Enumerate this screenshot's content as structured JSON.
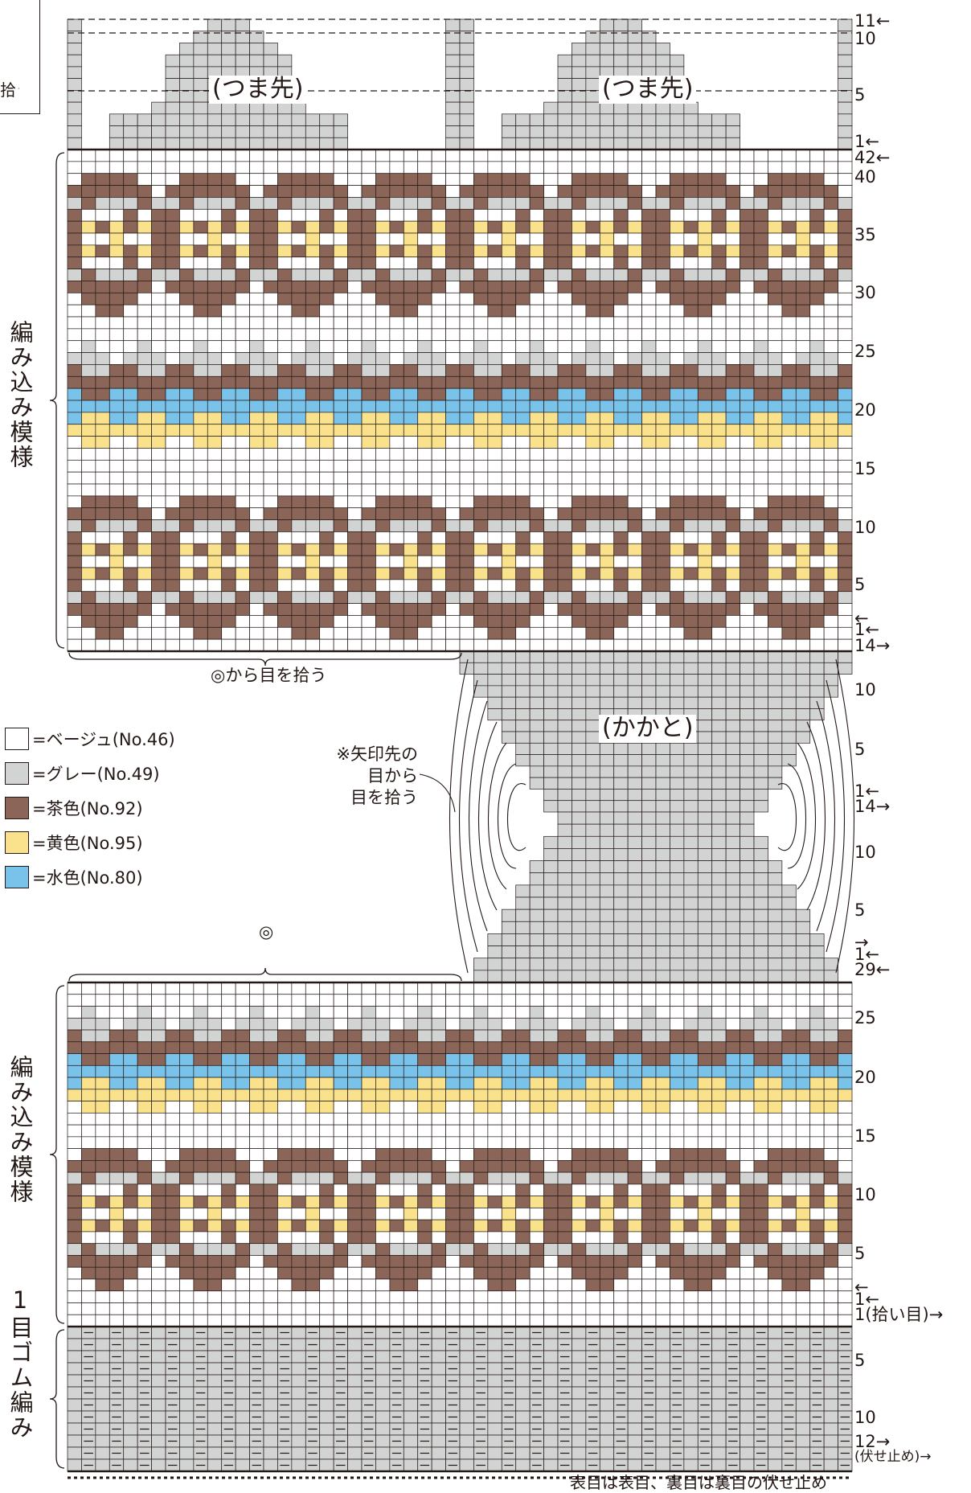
{
  "legend": [
    {
      "label": "=ベージュ(No.46)",
      "color": "#ffffff",
      "icon": "swatch-beige"
    },
    {
      "label": "=グレー(No.49)",
      "color": "#d2d3d3",
      "icon": "swatch-gray"
    },
    {
      "label": "=茶色(No.92)",
      "color": "#8b6558",
      "icon": "swatch-brown"
    },
    {
      "label": "=黄色(No.95)",
      "color": "#f9e28b",
      "icon": "swatch-yellow"
    },
    {
      "label": "=水色(No.80)",
      "color": "#79c2ea",
      "icon": "swatch-lightblue"
    }
  ],
  "toe_labels": [
    "(つま先)",
    "(つま先)"
  ],
  "heel_label": "(かかと)",
  "side_labels": {
    "upper_pattern": "編み込み模様",
    "lower_pattern": "編み込み模様",
    "ribbing": "1目ゴム編み"
  },
  "pickup_label": "◎から目を拾う",
  "pickup_mark": "◎",
  "note_lines": [
    "※矢印先の",
    "目から",
    "目を拾う"
  ],
  "bind_off_note": "表目は表目、裏目は裏目の伏せ止め",
  "cut_off_label": "拾う",
  "row_numbers": {
    "toe": [
      "11←",
      "10",
      "5",
      "1←"
    ],
    "foot": [
      "42←",
      "40",
      "35",
      "30",
      "25",
      "20",
      "15",
      "10",
      "5",
      "←",
      "1←"
    ],
    "heel_top": [
      "14→",
      "10",
      "5",
      "1←"
    ],
    "heel_bottom": [
      "14→",
      "10",
      "5",
      "→",
      "1←"
    ],
    "leg": [
      "29←",
      "25",
      "20",
      "15",
      "10",
      "5",
      "←",
      "1←"
    ],
    "ribbing": [
      "1(拾い目)→",
      "5",
      "10",
      "12→",
      "(伏せ止め)→"
    ]
  },
  "colors": {
    "beige": "#ffffff",
    "gray": "#d2d3d3",
    "brown": "#8b6558",
    "yellow": "#f9e28b",
    "blue": "#79c2ea",
    "ink": "#231815"
  }
}
